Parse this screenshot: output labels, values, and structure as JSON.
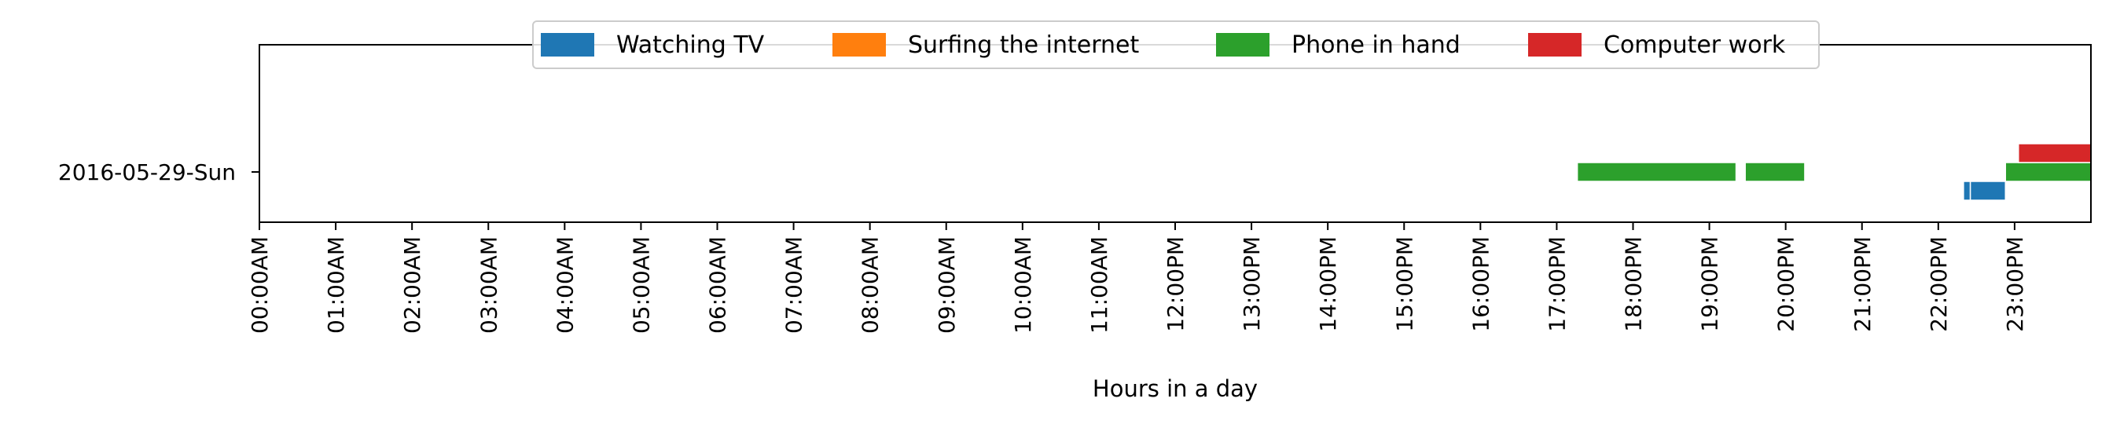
{
  "chart_data": {
    "type": "timeline",
    "xlabel": "Hours in a day",
    "xlim": [
      0,
      24
    ],
    "x_ticks": [
      "00:00AM",
      "01:00AM",
      "02:00AM",
      "03:00AM",
      "04:00AM",
      "05:00AM",
      "06:00AM",
      "07:00AM",
      "08:00AM",
      "09:00AM",
      "10:00AM",
      "11:00AM",
      "12:00PM",
      "13:00PM",
      "14:00PM",
      "15:00PM",
      "16:00PM",
      "17:00PM",
      "18:00PM",
      "19:00PM",
      "20:00PM",
      "21:00PM",
      "22:00PM",
      "23:00PM"
    ],
    "y_categories": [
      "2016-05-29-Sun"
    ],
    "legend": {
      "placement": "top-center"
    },
    "series": [
      {
        "name": "Watching TV",
        "color": "#1f77b4",
        "segments": [
          [
            22.33,
            22.42
          ],
          [
            22.42,
            22.88
          ]
        ]
      },
      {
        "name": "Surfing the internet",
        "color": "#ff7f0e",
        "segments": []
      },
      {
        "name": "Phone in hand",
        "color": "#2ca02c",
        "segments": [
          [
            17.27,
            19.35
          ],
          [
            19.47,
            20.25
          ],
          [
            22.88,
            24.0
          ]
        ]
      },
      {
        "name": "Computer work",
        "color": "#d62728",
        "segments": [
          [
            23.05,
            24.0
          ]
        ]
      }
    ]
  }
}
